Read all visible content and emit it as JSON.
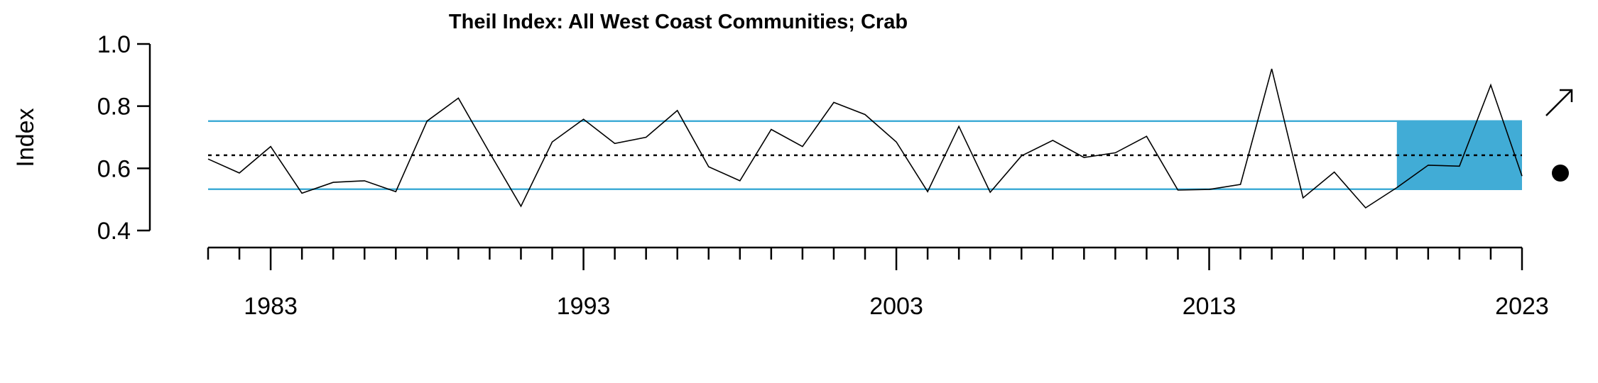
{
  "chart_data": {
    "type": "line",
    "title": "Theil Index: All West Coast Communities; Crab",
    "ylabel": "Index",
    "xlabel": "",
    "xlim": [
      1981,
      2023
    ],
    "ylim": [
      0.4,
      1.0
    ],
    "x_ticks_labeled": [
      1983,
      1993,
      2003,
      2013,
      2023
    ],
    "x_tick_labels": [
      "1983",
      "1993",
      "2003",
      "2013",
      "2023"
    ],
    "y_ticks": [
      0.4,
      0.6,
      0.8,
      1.0
    ],
    "y_tick_labels": [
      "0.4",
      "0.6",
      "0.8",
      "1.0"
    ],
    "grid": false,
    "series": [
      {
        "x": [
          1981,
          1982,
          1983,
          1984,
          1985,
          1986,
          1987,
          1988,
          1989,
          1990,
          1991,
          1992,
          1993,
          1994,
          1995,
          1996,
          1997,
          1998,
          1999,
          2000,
          2001,
          2002,
          2003,
          2004,
          2005,
          2006,
          2007,
          2008,
          2009,
          2010,
          2011,
          2012,
          2013,
          2014,
          2015,
          2016,
          2017,
          2018,
          2019,
          2020,
          2021,
          2022,
          2023
        ],
        "values": [
          0.63,
          0.585,
          0.67,
          0.52,
          0.555,
          0.56,
          0.525,
          0.752,
          0.826,
          0.65,
          0.478,
          0.685,
          0.758,
          0.68,
          0.7,
          0.786,
          0.605,
          0.56,
          0.725,
          0.67,
          0.812,
          0.773,
          0.685,
          0.525,
          0.735,
          0.523,
          0.64,
          0.69,
          0.635,
          0.65,
          0.703,
          0.53,
          0.532,
          0.548,
          0.92,
          0.505,
          0.588,
          0.473,
          0.538,
          0.61,
          0.607,
          0.868,
          0.575
        ]
      }
    ],
    "mean": 0.642,
    "upper_sd": 0.752,
    "lower_sd": 0.533,
    "highlight_range": [
      2019,
      2023
    ],
    "trend_symbol": "arrow-up-right",
    "mean_symbol": "dot",
    "colors": {
      "band": "#41acd6",
      "line": "#000000",
      "mean_line": "#000000"
    }
  }
}
